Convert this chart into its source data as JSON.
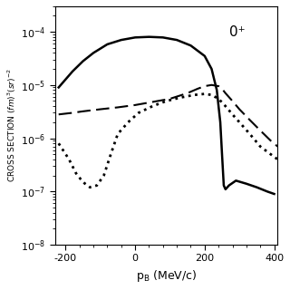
{
  "title_annotation": "0⁺",
  "xlabel": "p_B (MeV/c)",
  "ylabel": "CROSS SECTION (fm)³(sr)⁻²",
  "xlim": [
    -230,
    410
  ],
  "ylim": [
    1e-08,
    0.0003
  ],
  "background_color": "white",
  "plot_bg": "white",
  "solid_line": {
    "x": [
      -220,
      -180,
      -150,
      -120,
      -80,
      -40,
      0,
      40,
      80,
      120,
      160,
      200,
      220,
      235,
      245,
      250,
      255,
      260,
      270,
      290,
      320,
      350,
      380,
      400
    ],
    "y": [
      9e-06,
      1.8e-05,
      2.8e-05,
      4e-05,
      5.8e-05,
      7e-05,
      7.8e-05,
      8e-05,
      7.8e-05,
      7e-05,
      5.5e-05,
      3.5e-05,
      2e-05,
      8e-06,
      2e-06,
      5e-07,
      1.3e-07,
      1.1e-07,
      1.3e-07,
      1.6e-07,
      1.4e-07,
      1.2e-07,
      1e-07,
      9e-08
    ],
    "linewidth": 1.8,
    "color": "black"
  },
  "dashed_line": {
    "x": [
      -220,
      -180,
      -150,
      -100,
      -50,
      0,
      50,
      100,
      150,
      180,
      200,
      220,
      240,
      250,
      260,
      280,
      300,
      330,
      360,
      390,
      410
    ],
    "y": [
      2.8e-06,
      3e-06,
      3.2e-06,
      3.5e-06,
      3.8e-06,
      4.2e-06,
      4.8e-06,
      5.5e-06,
      7e-06,
      8.5e-06,
      9.5e-06,
      1e-05,
      9.5e-06,
      8.5e-06,
      7e-06,
      5e-06,
      3.5e-06,
      2.2e-06,
      1.4e-06,
      9e-07,
      7e-07
    ],
    "linewidth": 1.5,
    "color": "black"
  },
  "dotted_line": {
    "x": [
      -220,
      -190,
      -170,
      -150,
      -130,
      -110,
      -90,
      -70,
      -50,
      -20,
      10,
      50,
      90,
      130,
      170,
      200,
      220,
      240,
      260,
      280,
      300,
      330,
      360,
      390,
      410
    ],
    "y": [
      8e-07,
      4e-07,
      2.2e-07,
      1.5e-07,
      1.2e-07,
      1.3e-07,
      2e-07,
      5e-07,
      1.2e-06,
      2e-06,
      3e-06,
      4e-06,
      5e-06,
      5.8e-06,
      6.5e-06,
      6.8e-06,
      6.5e-06,
      5.5e-06,
      4e-06,
      2.8e-06,
      2e-06,
      1.2e-06,
      7e-07,
      5e-07,
      4e-07
    ],
    "linewidth": 2.0,
    "color": "black"
  }
}
